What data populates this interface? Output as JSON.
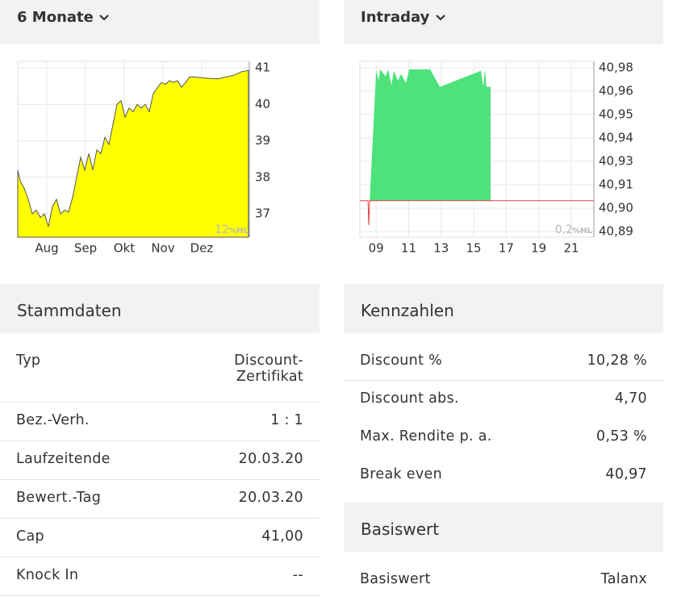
{
  "chart_data": [
    {
      "type": "area",
      "title": "6 Monate",
      "xlim": [
        7.25,
        13.23
      ],
      "ylim": [
        36.36,
        41.18
      ],
      "xticks": [
        {
          "value": 8,
          "label": "Aug"
        },
        {
          "value": 9,
          "label": "Sep"
        },
        {
          "value": 10,
          "label": "Okt"
        },
        {
          "value": 11,
          "label": "Nov"
        },
        {
          "value": 12,
          "label": "Dez"
        }
      ],
      "yticks": [
        37,
        38,
        39,
        40,
        41
      ],
      "grid": true,
      "watermark_value": "12",
      "watermark_unit": "%HL",
      "series": [
        {
          "color": "#ffff00",
          "line_color": "#555555",
          "fill": true,
          "x": [
            7.25,
            7.313,
            7.417,
            7.521,
            7.625,
            7.729,
            7.833,
            7.938,
            8.042,
            8.146,
            8.25,
            8.354,
            8.458,
            8.563,
            8.667,
            8.771,
            8.875,
            8.979,
            9.083,
            9.188,
            9.292,
            9.396,
            9.5,
            9.604,
            9.708,
            9.813,
            9.917,
            10.021,
            10.125,
            10.229,
            10.333,
            10.438,
            10.542,
            10.646,
            10.75,
            10.854,
            10.958,
            11.063,
            11.167,
            11.271,
            11.375,
            11.479,
            11.583,
            11.688,
            11.792,
            12,
            12.208,
            12.417,
            12.625,
            12.833,
            13.042,
            13.208
          ],
          "values": [
            38.2,
            37.9,
            37.7,
            37.4,
            37.0,
            37.1,
            36.9,
            37.0,
            36.65,
            37.2,
            37.4,
            37.0,
            37.1,
            37.05,
            37.45,
            38.0,
            38.55,
            38.2,
            38.65,
            38.2,
            38.75,
            38.65,
            39.1,
            38.9,
            39.45,
            40.0,
            40.1,
            39.65,
            39.9,
            39.8,
            40.0,
            39.9,
            40.0,
            39.8,
            40.3,
            40.45,
            40.6,
            40.55,
            40.65,
            40.6,
            40.65,
            40.47,
            40.6,
            40.75,
            40.75,
            40.73,
            40.71,
            40.7,
            40.75,
            40.8,
            40.9,
            40.93
          ]
        }
      ]
    },
    {
      "type": "area",
      "title": "Intraday",
      "xlim": [
        8.0,
        22.39
      ],
      "ylim": [
        40.8865,
        40.9804
      ],
      "xticks": [
        {
          "value": 9,
          "label": "09"
        },
        11,
        13,
        15,
        17,
        19,
        21
      ],
      "yticks": [
        {
          "value": 40.977,
          "label": "40,98"
        },
        {
          "value": 40.9645,
          "label": "40,96"
        },
        {
          "value": 40.952,
          "label": "40,95"
        },
        {
          "value": 40.9395,
          "label": "40,94"
        },
        {
          "value": 40.927,
          "label": "40,93"
        },
        {
          "value": 40.9145,
          "label": "40,91"
        },
        {
          "value": 40.902,
          "label": "40,90"
        },
        {
          "value": 40.8895,
          "label": "40,89"
        }
      ],
      "grid": true,
      "watermark_value": "0,2",
      "watermark_unit": "%HL",
      "series": [
        {
          "color": "#4de27a",
          "fill": true,
          "x": [
            8.603,
            9.0,
            9.149,
            9.248,
            9.595,
            9.744,
            9.942,
            10.091,
            10.339,
            10.537,
            10.834,
            11.033,
            12.322,
            12.917,
            15.445,
            15.594,
            15.693,
            15.792,
            16.04,
            16.04
          ],
          "values": [
            40.906,
            40.9753,
            40.9701,
            40.9761,
            40.9723,
            40.9761,
            40.9675,
            40.9753,
            40.9701,
            40.9736,
            40.9688,
            40.9761,
            40.9761,
            40.9667,
            40.9753,
            40.9667,
            40.9761,
            40.9667,
            40.9667,
            40.906
          ]
        },
        {
          "color": "#e04040",
          "fill": false,
          "x": [
            8.0,
            8.5,
            8.55,
            8.6,
            22.39
          ],
          "values": [
            40.906,
            40.906,
            40.8929,
            40.906,
            40.906
          ]
        }
      ]
    }
  ],
  "stammdaten": {
    "title": "Stammdaten",
    "rows": [
      [
        "Typ",
        "Discount-Zertifikat"
      ],
      [
        "Bez.-Verh.",
        "1 : 1"
      ],
      [
        "Laufzeitende",
        "20.03.20"
      ],
      [
        "Bewert.-Tag",
        "20.03.20"
      ],
      [
        "Cap",
        "41,00"
      ],
      [
        "Knock In",
        "--"
      ]
    ]
  },
  "kennzahlen": {
    "title": "Kennzahlen",
    "rows": [
      [
        "Discount %",
        "10,28 %"
      ],
      [
        "Discount abs.",
        "4,70"
      ],
      [
        "Max. Rendite p. a.",
        "0,53 %"
      ],
      [
        "Break even",
        "40,97"
      ]
    ]
  },
  "basiswert": {
    "title": "Basiswert",
    "rows": [
      [
        "Basiswert",
        "Talanx"
      ]
    ]
  }
}
